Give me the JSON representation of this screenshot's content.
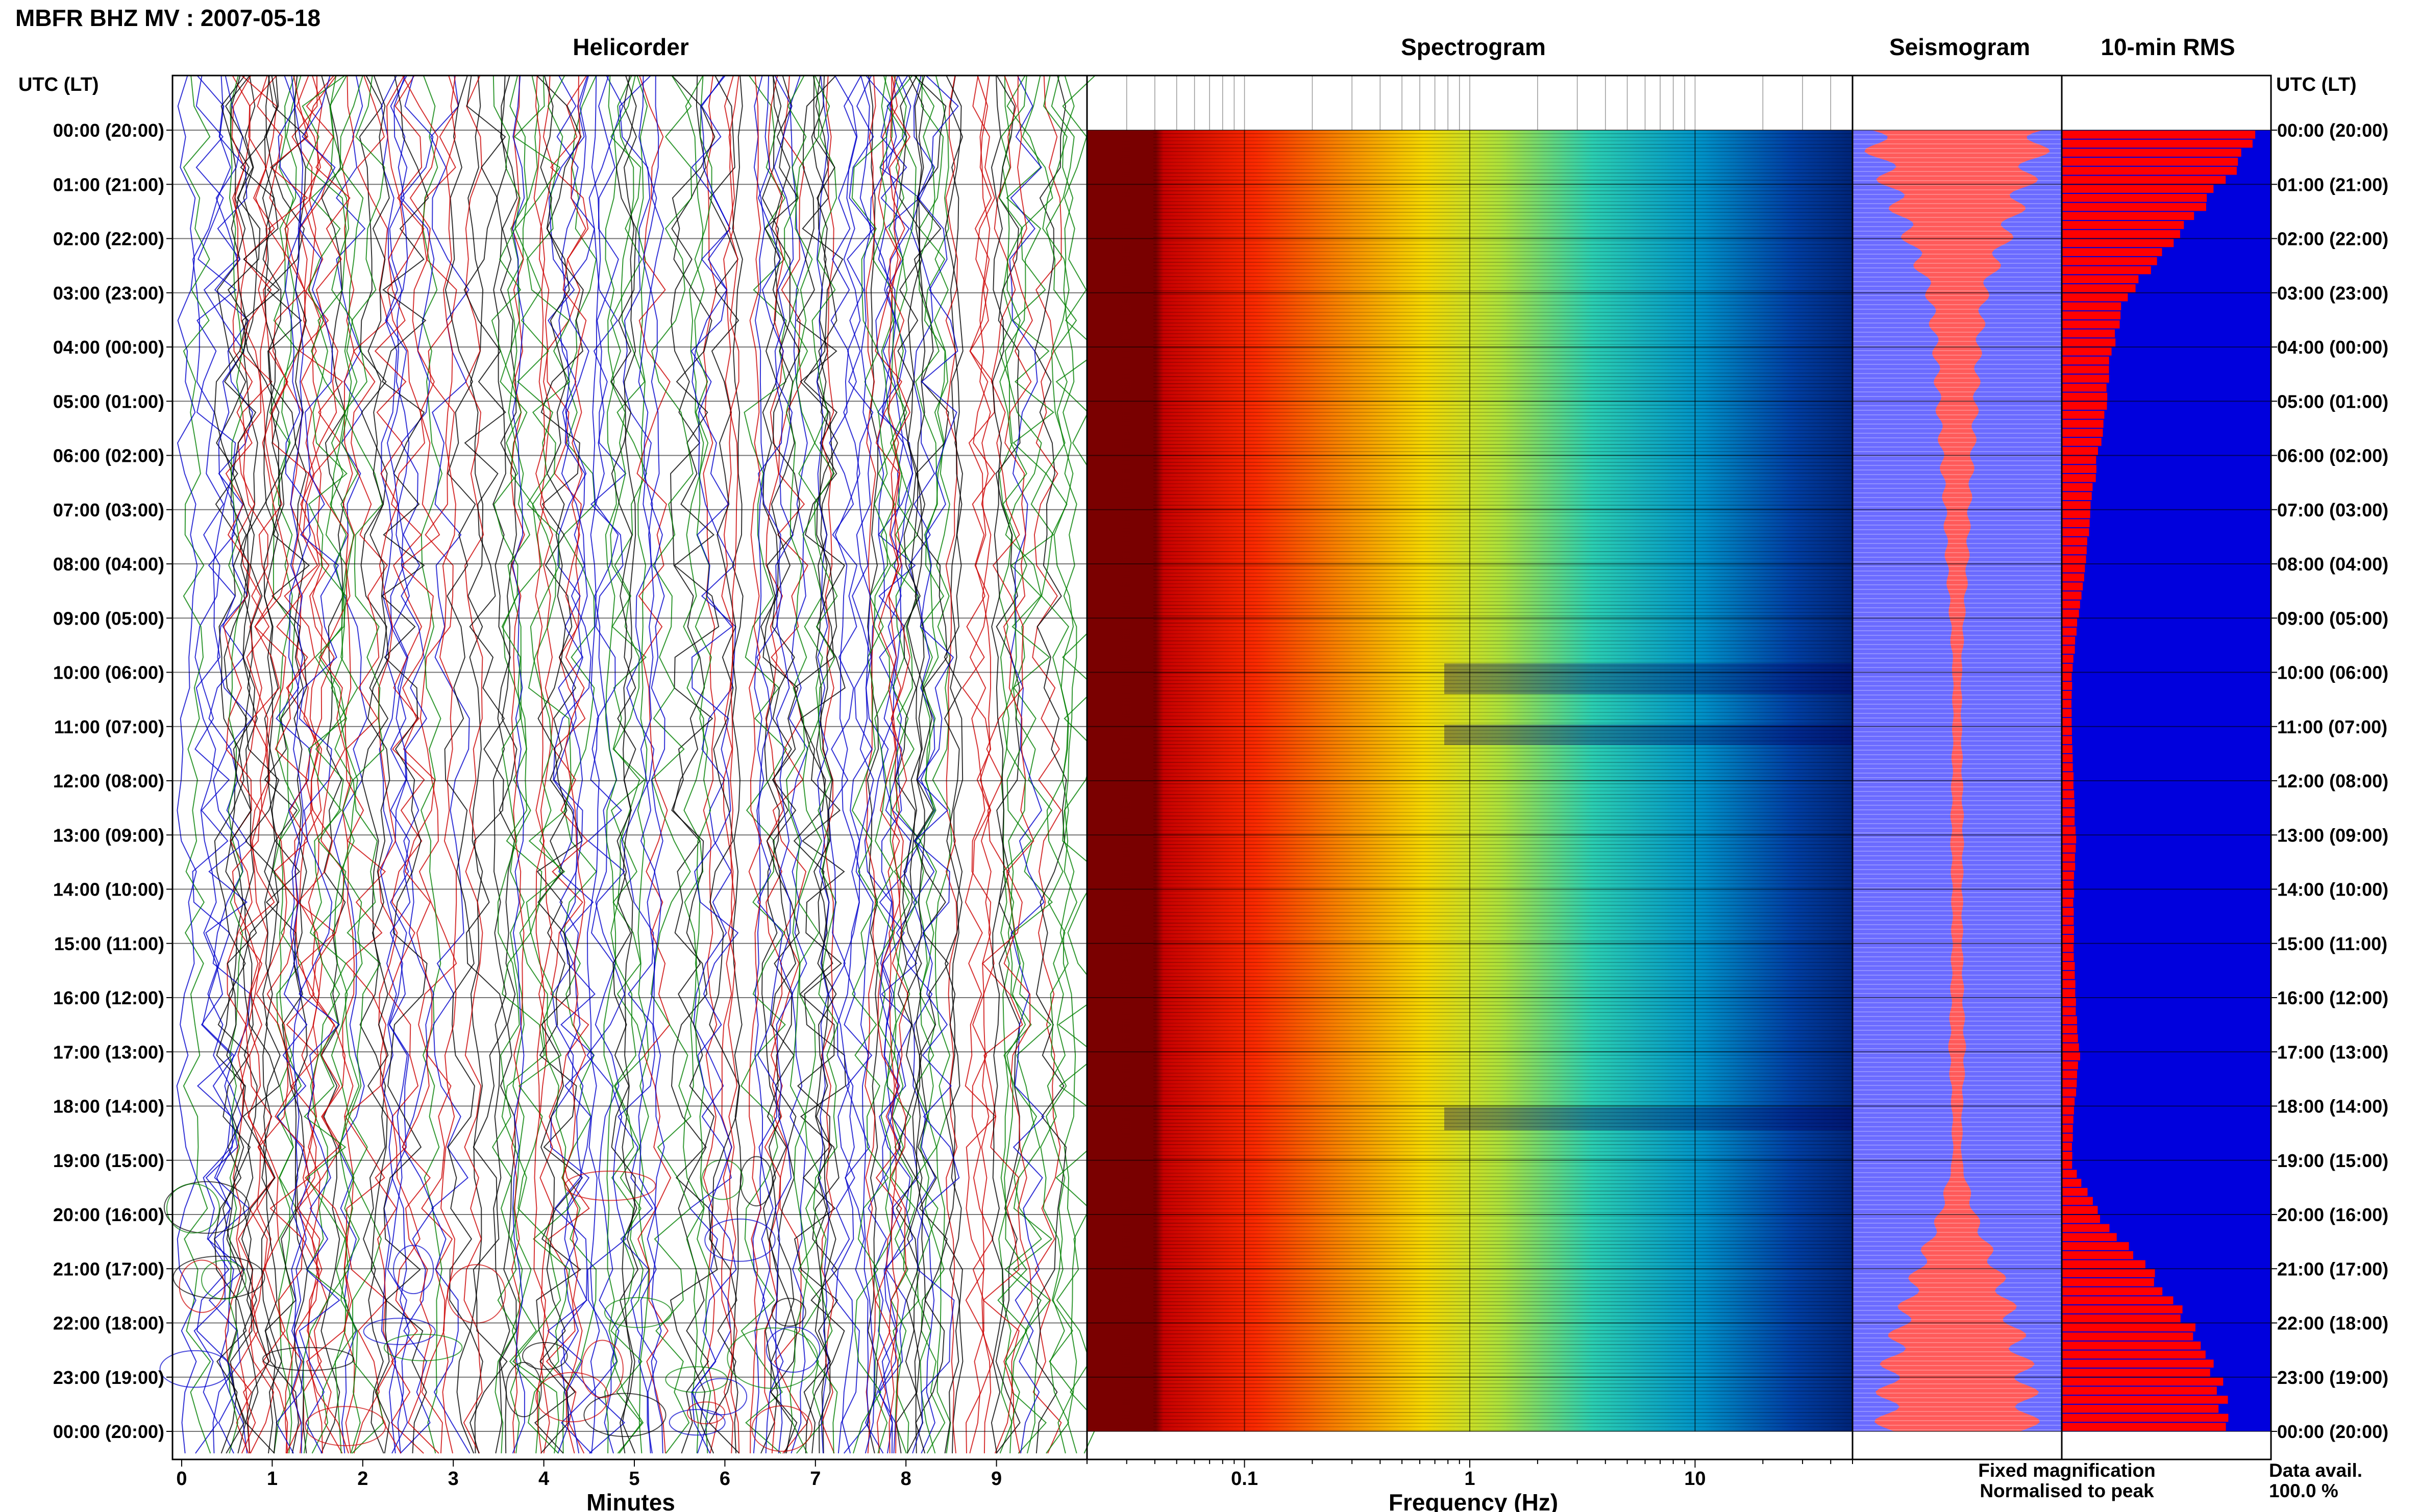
{
  "header": {
    "title": "MBFR BHZ MV : 2007-05-18"
  },
  "panels": {
    "helicorder": "Helicorder",
    "spectrogram": "Spectrogram",
    "seismogram": "Seismogram",
    "rms": "10-min RMS"
  },
  "axes": {
    "time_header_left": "UTC (LT)",
    "time_header_right": "UTC (LT)",
    "minutes_label": "Minutes",
    "frequency_label": "Frequency (Hz)"
  },
  "legend": {
    "fixed": "Fixed magnification",
    "normalised": "Normalised to peak",
    "fixed_color": "#0000ff",
    "normalised_color": "#ff0000"
  },
  "data_avail": {
    "label": "Data avail.",
    "value": "100.0 %"
  },
  "chart_data": [
    {
      "type": "line",
      "panel": "Helicorder",
      "xlabel": "Minutes",
      "x_ticks": [
        "0",
        "1",
        "2",
        "3",
        "4",
        "5",
        "6",
        "7",
        "8",
        "9"
      ],
      "xlim": [
        0,
        10
      ],
      "trace_colors": [
        "#000000",
        "#cc0000",
        "#0000cc",
        "#008000"
      ]
    },
    {
      "type": "heatmap",
      "panel": "Spectrogram",
      "xlabel": "Frequency (Hz)",
      "x_scale": "log",
      "x_ticks": [
        "0.1",
        "1",
        "10"
      ],
      "xlim": [
        0.02,
        50
      ],
      "colormap": "jet"
    },
    {
      "type": "area",
      "panel": "Seismogram",
      "series": [
        {
          "name": "Fixed magnification",
          "color": "#6b6bff"
        },
        {
          "name": "Normalised to peak",
          "color": "#ff5a5a"
        }
      ]
    },
    {
      "type": "bar",
      "panel": "10-min RMS",
      "orientation": "horizontal",
      "hourly_relative_rms": [
        1.0,
        0.78,
        0.55,
        0.32,
        0.25,
        0.22,
        0.18,
        0.14,
        0.12,
        0.08,
        0.05,
        0.05,
        0.06,
        0.07,
        0.06,
        0.06,
        0.07,
        0.09,
        0.06,
        0.05,
        0.2,
        0.45,
        0.65,
        0.8,
        0.82
      ],
      "colors": {
        "rms": "#ff0000",
        "background": "#0000dd"
      }
    }
  ],
  "time_rows": [
    "00:00 (20:00)",
    "01:00 (21:00)",
    "02:00 (22:00)",
    "03:00 (23:00)",
    "04:00 (00:00)",
    "05:00 (01:00)",
    "06:00 (02:00)",
    "07:00 (03:00)",
    "08:00 (04:00)",
    "09:00 (05:00)",
    "10:00 (06:00)",
    "11:00 (07:00)",
    "12:00 (08:00)",
    "13:00 (09:00)",
    "14:00 (10:00)",
    "15:00 (11:00)",
    "16:00 (12:00)",
    "17:00 (13:00)",
    "18:00 (14:00)",
    "19:00 (15:00)",
    "20:00 (16:00)",
    "21:00 (17:00)",
    "22:00 (18:00)",
    "23:00 (19:00)",
    "00:00 (20:00)"
  ]
}
